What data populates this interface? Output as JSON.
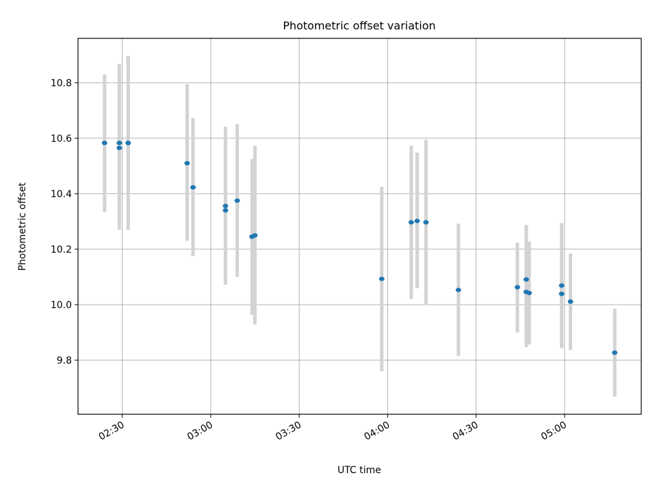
{
  "chart_data": {
    "type": "scatter",
    "title": "Photometric offset variation",
    "xlabel": "UTC time",
    "ylabel": "Photometric offset",
    "x_type": "time",
    "xlim": [
      "02:15",
      "05:26"
    ],
    "ylim": [
      9.605,
      10.96
    ],
    "x_ticks": [
      "02:30",
      "03:00",
      "03:30",
      "04:00",
      "04:30",
      "05:00"
    ],
    "y_ticks": [
      9.8,
      10.0,
      10.2,
      10.4,
      10.6,
      10.8
    ],
    "y_tick_labels": [
      "9.8",
      "10.0",
      "10.2",
      "10.4",
      "10.6",
      "10.8"
    ],
    "grid": true,
    "marker_color": "#1f77b4",
    "errorbar_color": "#d3d3d3",
    "series": [
      {
        "points": [
          {
            "x": "02:24",
            "y": 10.583,
            "ylow": 10.334,
            "yhigh": 10.83
          },
          {
            "x": "02:29",
            "y": 10.583,
            "ylow": 10.292,
            "yhigh": 10.867
          },
          {
            "x": "02:29",
            "y": 10.565,
            "ylow": 10.27,
            "yhigh": 10.862
          },
          {
            "x": "02:32",
            "y": 10.583,
            "ylow": 10.27,
            "yhigh": 10.897
          },
          {
            "x": "02:32",
            "y": 10.583,
            "ylow": 10.27,
            "yhigh": 10.897
          },
          {
            "x": "02:52",
            "y": 10.51,
            "ylow": 10.23,
            "yhigh": 10.795
          },
          {
            "x": "02:54",
            "y": 10.423,
            "ylow": 10.175,
            "yhigh": 10.673
          },
          {
            "x": "03:05",
            "y": 10.356,
            "ylow": 10.072,
            "yhigh": 10.642
          },
          {
            "x": "03:05",
            "y": 10.34,
            "ylow": 10.08,
            "yhigh": 10.6
          },
          {
            "x": "03:09",
            "y": 10.375,
            "ylow": 10.1,
            "yhigh": 10.651
          },
          {
            "x": "03:14",
            "y": 10.245,
            "ylow": 9.963,
            "yhigh": 10.525
          },
          {
            "x": "03:15",
            "y": 10.25,
            "ylow": 9.929,
            "yhigh": 10.573
          },
          {
            "x": "03:58",
            "y": 10.093,
            "ylow": 9.76,
            "yhigh": 10.425
          },
          {
            "x": "04:08",
            "y": 10.297,
            "ylow": 10.02,
            "yhigh": 10.573
          },
          {
            "x": "04:10",
            "y": 10.302,
            "ylow": 10.059,
            "yhigh": 10.548
          },
          {
            "x": "04:13",
            "y": 10.297,
            "ylow": 9.998,
            "yhigh": 10.594
          },
          {
            "x": "04:24",
            "y": 10.053,
            "ylow": 9.815,
            "yhigh": 10.292
          },
          {
            "x": "04:44",
            "y": 10.063,
            "ylow": 9.9,
            "yhigh": 10.224
          },
          {
            "x": "04:47",
            "y": 10.091,
            "ylow": 9.897,
            "yhigh": 10.287
          },
          {
            "x": "04:47",
            "y": 10.046,
            "ylow": 9.847,
            "yhigh": 10.245
          },
          {
            "x": "04:48",
            "y": 10.042,
            "ylow": 9.856,
            "yhigh": 10.228
          },
          {
            "x": "04:59",
            "y": 10.069,
            "ylow": 9.843,
            "yhigh": 10.294
          },
          {
            "x": "04:59",
            "y": 10.039,
            "ylow": 9.85,
            "yhigh": 10.228
          },
          {
            "x": "05:02",
            "y": 10.011,
            "ylow": 9.837,
            "yhigh": 10.185
          },
          {
            "x": "05:17",
            "y": 9.827,
            "ylow": 9.668,
            "yhigh": 9.985
          }
        ]
      }
    ]
  }
}
